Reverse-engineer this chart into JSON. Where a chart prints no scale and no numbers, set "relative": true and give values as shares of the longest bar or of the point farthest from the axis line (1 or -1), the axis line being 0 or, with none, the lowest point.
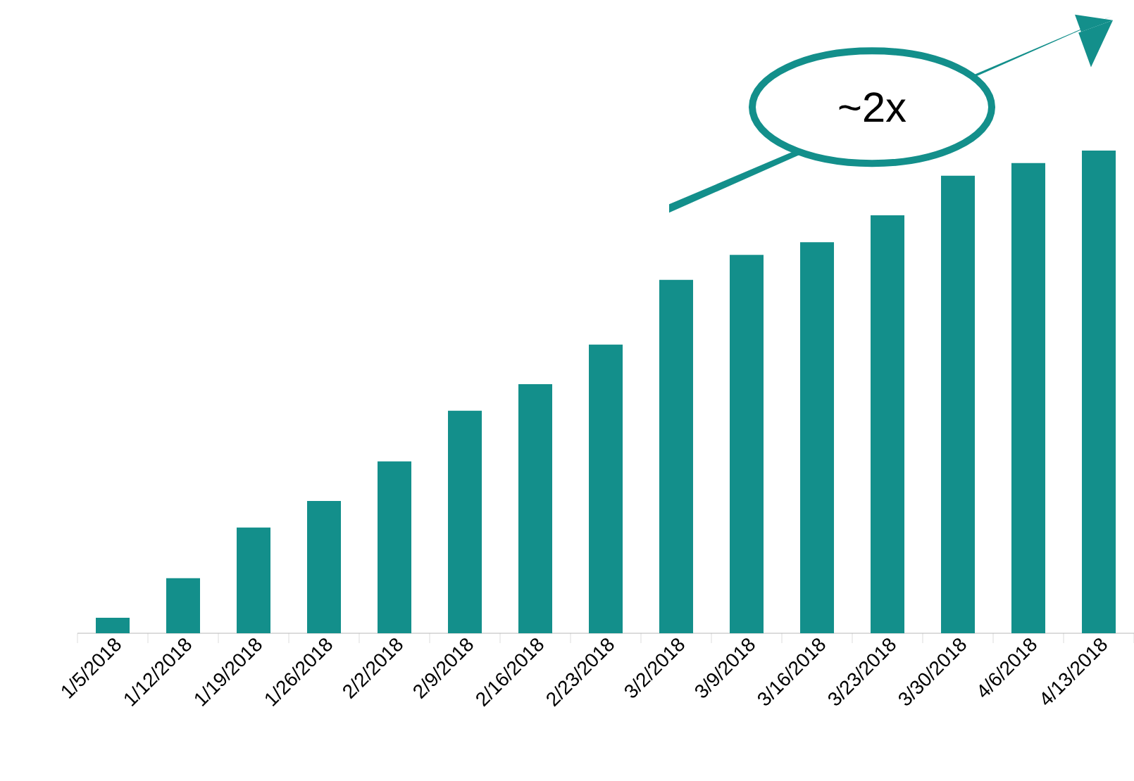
{
  "chart_data": {
    "type": "bar",
    "relative": true,
    "categories": [
      "1/5/2018",
      "1/12/2018",
      "1/19/2018",
      "1/26/2018",
      "2/2/2018",
      "2/9/2018",
      "2/16/2018",
      "2/23/2018",
      "3/2/2018",
      "3/9/2018",
      "3/16/2018",
      "3/23/2018",
      "3/30/2018",
      "4/6/2018",
      "4/13/2018"
    ],
    "values": [
      0.032,
      0.114,
      0.219,
      0.274,
      0.356,
      0.461,
      0.516,
      0.598,
      0.732,
      0.784,
      0.81,
      0.866,
      0.948,
      0.974,
      1.0
    ],
    "color": "#138f8b",
    "annotations": [
      "~2x"
    ]
  }
}
